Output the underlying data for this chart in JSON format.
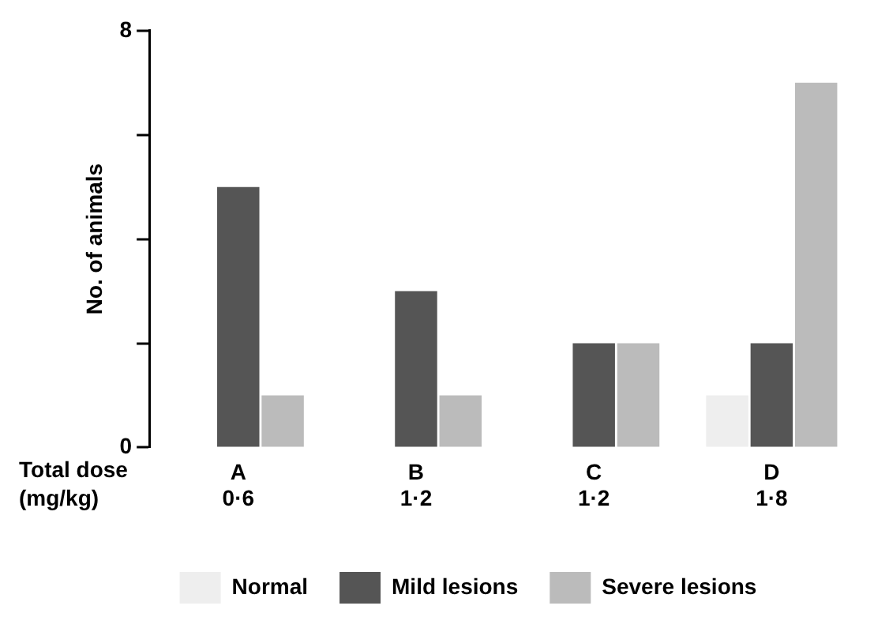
{
  "chart_data": {
    "type": "bar",
    "ylabel": "No. of animals",
    "xlabel": "Total dose (mg/kg)",
    "categories": [
      "A",
      "B",
      "C",
      "D"
    ],
    "series": [
      {
        "name": "Normal",
        "color": "#eeeeee",
        "values": [
          0,
          0,
          0,
          1
        ]
      },
      {
        "name": "Mild lesions",
        "color": "#555555",
        "values": [
          5,
          3,
          2,
          2
        ]
      },
      {
        "name": "Severe lesions",
        "color": "#bbbbbb",
        "values": [
          1,
          1,
          2,
          7
        ]
      }
    ],
    "annotations": [
      "0·6",
      "1·2",
      "1·2",
      "1·8"
    ],
    "ylim": [
      0,
      8
    ],
    "yticks": [
      0,
      {
        "value": 2,
        "label": null
      },
      {
        "value": 4,
        "label": null
      },
      {
        "value": 6,
        "label": null
      },
      8
    ],
    "grid": false,
    "legend": "bottom"
  }
}
